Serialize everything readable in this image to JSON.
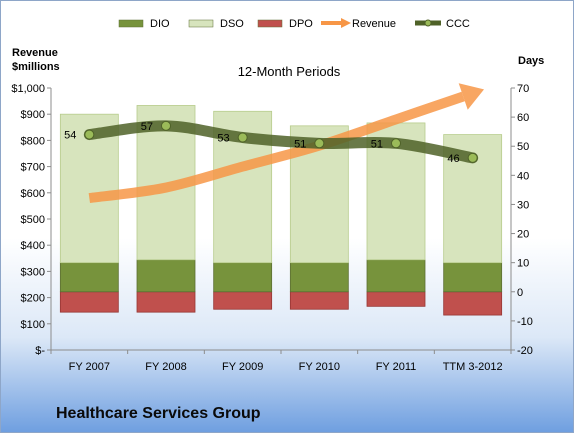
{
  "company_name": "Healthcare Services Group",
  "chart_data": {
    "type": "bar",
    "title": "12-Month Periods",
    "categories": [
      "FY 2007",
      "FY 2008",
      "FY 2009",
      "FY 2010",
      "FY 2011",
      "TTM 3-2012"
    ],
    "left_axis": {
      "label_line1": "Revenue",
      "label_line2": "$millions",
      "range": [
        0,
        1000
      ],
      "ticks": [
        "$-",
        "$100",
        "$200",
        "$300",
        "$400",
        "$500",
        "$600",
        "$700",
        "$800",
        "$900",
        "$1,000"
      ]
    },
    "right_axis": {
      "label": "Days",
      "range": [
        -20,
        70
      ],
      "ticks": [
        "-20",
        "-10",
        "0",
        "10",
        "20",
        "30",
        "40",
        "50",
        "60",
        "70"
      ]
    },
    "legend": {
      "position": "top",
      "items": [
        {
          "name": "DIO",
          "type": "bar",
          "color": "#77933c"
        },
        {
          "name": "DSO",
          "type": "bar",
          "color": "#d7e4bd"
        },
        {
          "name": "DPO",
          "type": "bar",
          "color": "#c0504d"
        },
        {
          "name": "Revenue",
          "type": "line",
          "color": "#f79646"
        },
        {
          "name": "CCC",
          "type": "line",
          "color": "#4f6228"
        }
      ]
    },
    "series": [
      {
        "name": "DIO",
        "axis": "days",
        "values": [
          10,
          11,
          10,
          10,
          11,
          10
        ]
      },
      {
        "name": "DSO",
        "axis": "days",
        "values": [
          51,
          53,
          52,
          47,
          47,
          44
        ]
      },
      {
        "name": "DPO",
        "axis": "days",
        "values": [
          -7,
          -7,
          -6,
          -6,
          -5,
          -8
        ]
      },
      {
        "name": "CCC",
        "axis": "days",
        "values": [
          54,
          57,
          53,
          51,
          51,
          46
        ],
        "data_labels": [
          "54",
          "57",
          "53",
          "51",
          "51",
          "46"
        ]
      },
      {
        "name": "Revenue",
        "axis": "revenue",
        "values": [
          580,
          620,
          700,
          780,
          880,
          980
        ]
      }
    ],
    "grid": false
  }
}
